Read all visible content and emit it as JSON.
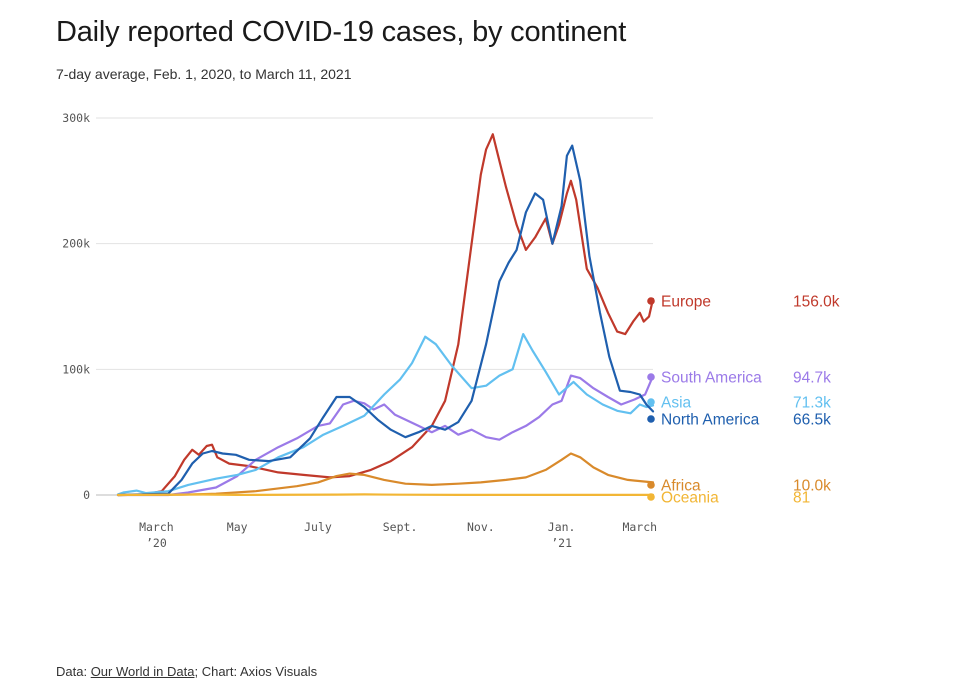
{
  "title": "Daily reported COVID-19 cases, by continent",
  "subtitle": "7-day average, Feb. 1, 2020, to March 11, 2021",
  "footer": {
    "prefix": "Data: ",
    "source": "Our World in Data",
    "suffix": "; Chart: Axios Visuals"
  },
  "chart_data": {
    "type": "line",
    "title": "Daily reported COVID-19 cases, by continent",
    "subtitle": "7-day average, Feb. 1, 2020, to March 11, 2021",
    "x_range": [
      "2020-02-01",
      "2021-03-11"
    ],
    "ylim": [
      0,
      300000
    ],
    "y_ticks": [
      {
        "value": 0,
        "label": "0"
      },
      {
        "value": 100000,
        "label": "100k"
      },
      {
        "value": 200000,
        "label": "200k"
      },
      {
        "value": 300000,
        "label": "300k"
      }
    ],
    "x_ticks": [
      {
        "date": "2020-03-01",
        "label": "March",
        "sublabel": "’20"
      },
      {
        "date": "2020-05-01",
        "label": "May",
        "sublabel": ""
      },
      {
        "date": "2020-07-01",
        "label": "July",
        "sublabel": ""
      },
      {
        "date": "2020-09-01",
        "label": "Sept.",
        "sublabel": ""
      },
      {
        "date": "2020-11-01",
        "label": "Nov.",
        "sublabel": ""
      },
      {
        "date": "2021-01-01",
        "label": "Jan.",
        "sublabel": "’21"
      },
      {
        "date": "2021-03-01",
        "label": "March",
        "sublabel": ""
      }
    ],
    "grid": true,
    "series": [
      {
        "name": "Europe",
        "color": "#c0392b",
        "last_label": "156.0k",
        "points": [
          [
            "2020-02-01",
            0
          ],
          [
            "2020-02-20",
            200
          ],
          [
            "2020-03-05",
            3000
          ],
          [
            "2020-03-15",
            15000
          ],
          [
            "2020-03-22",
            28000
          ],
          [
            "2020-03-28",
            36000
          ],
          [
            "2020-04-02",
            32000
          ],
          [
            "2020-04-08",
            39000
          ],
          [
            "2020-04-12",
            40000
          ],
          [
            "2020-04-16",
            30000
          ],
          [
            "2020-04-25",
            25000
          ],
          [
            "2020-05-10",
            23000
          ],
          [
            "2020-06-01",
            18000
          ],
          [
            "2020-06-20",
            16000
          ],
          [
            "2020-07-10",
            14000
          ],
          [
            "2020-07-25",
            15000
          ],
          [
            "2020-08-10",
            20000
          ],
          [
            "2020-08-25",
            27000
          ],
          [
            "2020-09-10",
            38000
          ],
          [
            "2020-09-25",
            55000
          ],
          [
            "2020-10-05",
            75000
          ],
          [
            "2020-10-15",
            120000
          ],
          [
            "2020-10-25",
            200000
          ],
          [
            "2020-11-01",
            255000
          ],
          [
            "2020-11-05",
            275000
          ],
          [
            "2020-11-08",
            282000
          ],
          [
            "2020-11-10",
            287000
          ],
          [
            "2020-11-14",
            270000
          ],
          [
            "2020-11-20",
            245000
          ],
          [
            "2020-11-28",
            215000
          ],
          [
            "2020-12-05",
            195000
          ],
          [
            "2020-12-12",
            205000
          ],
          [
            "2020-12-20",
            220000
          ],
          [
            "2020-12-25",
            200000
          ],
          [
            "2020-12-30",
            215000
          ],
          [
            "2021-01-05",
            240000
          ],
          [
            "2021-01-08",
            250000
          ],
          [
            "2021-01-12",
            235000
          ],
          [
            "2021-01-20",
            180000
          ],
          [
            "2021-01-28",
            165000
          ],
          [
            "2021-02-05",
            145000
          ],
          [
            "2021-02-12",
            130000
          ],
          [
            "2021-02-18",
            128000
          ],
          [
            "2021-02-24",
            138000
          ],
          [
            "2021-03-01",
            145000
          ],
          [
            "2021-03-04",
            138000
          ],
          [
            "2021-03-08",
            142000
          ],
          [
            "2021-03-11",
            156000
          ]
        ]
      },
      {
        "name": "South America",
        "color": "#9b7ae8",
        "last_label": "94.7k",
        "points": [
          [
            "2020-02-01",
            0
          ],
          [
            "2020-03-10",
            0
          ],
          [
            "2020-03-25",
            2000
          ],
          [
            "2020-04-15",
            6000
          ],
          [
            "2020-05-01",
            15000
          ],
          [
            "2020-05-15",
            28000
          ],
          [
            "2020-06-01",
            38000
          ],
          [
            "2020-06-15",
            45000
          ],
          [
            "2020-07-01",
            55000
          ],
          [
            "2020-07-10",
            57000
          ],
          [
            "2020-07-20",
            72000
          ],
          [
            "2020-07-28",
            75000
          ],
          [
            "2020-08-05",
            73000
          ],
          [
            "2020-08-12",
            68000
          ],
          [
            "2020-08-20",
            72000
          ],
          [
            "2020-08-28",
            64000
          ],
          [
            "2020-09-05",
            60000
          ],
          [
            "2020-09-15",
            55000
          ],
          [
            "2020-09-25",
            50000
          ],
          [
            "2020-10-05",
            55000
          ],
          [
            "2020-10-15",
            48000
          ],
          [
            "2020-10-25",
            52000
          ],
          [
            "2020-11-05",
            46000
          ],
          [
            "2020-11-15",
            44000
          ],
          [
            "2020-11-25",
            50000
          ],
          [
            "2020-12-05",
            55000
          ],
          [
            "2020-12-15",
            62000
          ],
          [
            "2020-12-25",
            72000
          ],
          [
            "2021-01-01",
            75000
          ],
          [
            "2021-01-08",
            95000
          ],
          [
            "2021-01-15",
            93000
          ],
          [
            "2021-01-25",
            85000
          ],
          [
            "2021-02-05",
            78000
          ],
          [
            "2021-02-15",
            72000
          ],
          [
            "2021-02-25",
            76000
          ],
          [
            "2021-03-05",
            80000
          ],
          [
            "2021-03-11",
            94700
          ]
        ]
      },
      {
        "name": "Asia",
        "color": "#62c0f0",
        "last_label": "71.3k",
        "points": [
          [
            "2020-02-01",
            500
          ],
          [
            "2020-02-05",
            2000
          ],
          [
            "2020-02-15",
            3500
          ],
          [
            "2020-02-22",
            1500
          ],
          [
            "2020-03-10",
            3000
          ],
          [
            "2020-03-25",
            8000
          ],
          [
            "2020-04-15",
            13000
          ],
          [
            "2020-05-01",
            16000
          ],
          [
            "2020-05-15",
            20000
          ],
          [
            "2020-06-01",
            30000
          ],
          [
            "2020-06-20",
            38000
          ],
          [
            "2020-07-05",
            48000
          ],
          [
            "2020-07-20",
            55000
          ],
          [
            "2020-08-05",
            63000
          ],
          [
            "2020-08-20",
            80000
          ],
          [
            "2020-09-01",
            92000
          ],
          [
            "2020-09-10",
            105000
          ],
          [
            "2020-09-20",
            126000
          ],
          [
            "2020-09-28",
            120000
          ],
          [
            "2020-10-10",
            103000
          ],
          [
            "2020-10-25",
            85000
          ],
          [
            "2020-11-05",
            87000
          ],
          [
            "2020-11-15",
            95000
          ],
          [
            "2020-11-25",
            100000
          ],
          [
            "2020-12-03",
            128000
          ],
          [
            "2020-12-10",
            115000
          ],
          [
            "2020-12-20",
            98000
          ],
          [
            "2020-12-30",
            80000
          ],
          [
            "2021-01-10",
            90000
          ],
          [
            "2021-01-20",
            80000
          ],
          [
            "2021-02-01",
            72000
          ],
          [
            "2021-02-12",
            67000
          ],
          [
            "2021-02-22",
            65000
          ],
          [
            "2021-03-01",
            72000
          ],
          [
            "2021-03-06",
            70000
          ],
          [
            "2021-03-11",
            71300
          ]
        ]
      },
      {
        "name": "North America",
        "color": "#1f5fae",
        "last_label": "66.5k",
        "points": [
          [
            "2020-02-01",
            0
          ],
          [
            "2020-03-10",
            1000
          ],
          [
            "2020-03-20",
            12000
          ],
          [
            "2020-03-28",
            25000
          ],
          [
            "2020-04-05",
            33000
          ],
          [
            "2020-04-12",
            35000
          ],
          [
            "2020-04-20",
            33000
          ],
          [
            "2020-04-30",
            32000
          ],
          [
            "2020-05-10",
            28000
          ],
          [
            "2020-05-25",
            27000
          ],
          [
            "2020-06-10",
            30000
          ],
          [
            "2020-06-25",
            45000
          ],
          [
            "2020-07-05",
            62000
          ],
          [
            "2020-07-15",
            78000
          ],
          [
            "2020-07-25",
            78000
          ],
          [
            "2020-08-05",
            70000
          ],
          [
            "2020-08-15",
            60000
          ],
          [
            "2020-08-25",
            52000
          ],
          [
            "2020-09-05",
            46000
          ],
          [
            "2020-09-15",
            50000
          ],
          [
            "2020-09-25",
            55000
          ],
          [
            "2020-10-05",
            52000
          ],
          [
            "2020-10-15",
            58000
          ],
          [
            "2020-10-25",
            75000
          ],
          [
            "2020-11-05",
            120000
          ],
          [
            "2020-11-15",
            170000
          ],
          [
            "2020-11-22",
            185000
          ],
          [
            "2020-11-28",
            195000
          ],
          [
            "2020-12-05",
            225000
          ],
          [
            "2020-12-12",
            240000
          ],
          [
            "2020-12-18",
            235000
          ],
          [
            "2020-12-25",
            200000
          ],
          [
            "2021-01-01",
            230000
          ],
          [
            "2021-01-05",
            270000
          ],
          [
            "2021-01-09",
            278000
          ],
          [
            "2021-01-15",
            250000
          ],
          [
            "2021-01-22",
            190000
          ],
          [
            "2021-01-30",
            145000
          ],
          [
            "2021-02-06",
            110000
          ],
          [
            "2021-02-14",
            83000
          ],
          [
            "2021-02-22",
            82000
          ],
          [
            "2021-03-01",
            80000
          ],
          [
            "2021-03-06",
            72000
          ],
          [
            "2021-03-11",
            66500
          ]
        ]
      },
      {
        "name": "Africa",
        "color": "#d98a2b",
        "last_label": "10.0k",
        "points": [
          [
            "2020-02-01",
            0
          ],
          [
            "2020-03-20",
            200
          ],
          [
            "2020-04-15",
            1000
          ],
          [
            "2020-05-15",
            3000
          ],
          [
            "2020-06-15",
            7000
          ],
          [
            "2020-07-01",
            10000
          ],
          [
            "2020-07-15",
            15000
          ],
          [
            "2020-07-25",
            17000
          ],
          [
            "2020-08-05",
            16000
          ],
          [
            "2020-08-20",
            12000
          ],
          [
            "2020-09-05",
            9000
          ],
          [
            "2020-09-25",
            8000
          ],
          [
            "2020-10-15",
            9000
          ],
          [
            "2020-11-01",
            10000
          ],
          [
            "2020-11-20",
            12000
          ],
          [
            "2020-12-05",
            14000
          ],
          [
            "2020-12-20",
            20000
          ],
          [
            "2021-01-01",
            28000
          ],
          [
            "2021-01-08",
            33000
          ],
          [
            "2021-01-15",
            30000
          ],
          [
            "2021-01-25",
            22000
          ],
          [
            "2021-02-05",
            16000
          ],
          [
            "2021-02-20",
            12000
          ],
          [
            "2021-03-11",
            10000
          ]
        ]
      },
      {
        "name": "Oceania",
        "color": "#f2b635",
        "last_label": "81",
        "points": [
          [
            "2020-02-01",
            0
          ],
          [
            "2020-03-20",
            300
          ],
          [
            "2020-04-05",
            400
          ],
          [
            "2020-05-01",
            50
          ],
          [
            "2020-07-15",
            300
          ],
          [
            "2020-08-05",
            500
          ],
          [
            "2020-09-01",
            200
          ],
          [
            "2020-10-15",
            50
          ],
          [
            "2021-03-11",
            81
          ]
        ]
      }
    ]
  }
}
